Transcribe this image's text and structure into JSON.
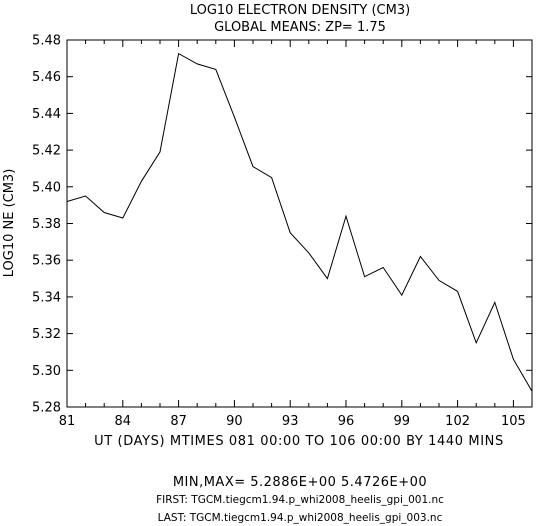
{
  "chart_data": {
    "type": "line",
    "title": "LOG10 ELECTRON DENSITY (CM3)",
    "subtitle": "GLOBAL MEANS: ZP=  1.75",
    "xlabel": "UT (DAYS) MTIMES 081 00:00 TO 106 00:00 BY 1440 MINS",
    "ylabel": "LOG10 NE (CM3)",
    "xlim": [
      81,
      106
    ],
    "ylim": [
      5.28,
      5.48
    ],
    "xticks": [
      81,
      84,
      87,
      90,
      93,
      96,
      99,
      102,
      105
    ],
    "xtick_labels": [
      "81",
      "84",
      "87",
      "90",
      "93",
      "96",
      "99",
      "102",
      "105"
    ],
    "yticks": [
      5.28,
      5.3,
      5.32,
      5.34,
      5.36,
      5.38,
      5.4,
      5.42,
      5.44,
      5.46,
      5.48
    ],
    "ytick_labels": [
      "5.28",
      "5.30",
      "5.32",
      "5.34",
      "5.36",
      "5.38",
      "5.40",
      "5.42",
      "5.44",
      "5.46",
      "5.48"
    ],
    "grid": false,
    "series": [
      {
        "x": [
          81,
          82,
          83,
          84,
          85,
          86,
          87,
          88,
          89,
          90,
          91,
          92,
          93,
          94,
          95,
          96,
          97,
          98,
          99,
          100,
          101,
          102,
          103,
          104,
          105,
          106
        ],
        "values": [
          5.392,
          5.395,
          5.386,
          5.383,
          5.403,
          5.419,
          5.4726,
          5.467,
          5.464,
          5.438,
          5.411,
          5.405,
          5.375,
          5.364,
          5.35,
          5.384,
          5.351,
          5.356,
          5.341,
          5.362,
          5.349,
          5.343,
          5.315,
          5.337,
          5.306,
          5.2886
        ]
      }
    ]
  },
  "footer": {
    "minmax": "MIN,MAX=  5.2886E+00  5.4726E+00",
    "first": "FIRST: TGCM.tiegcm1.94.p_whi2008_heelis_gpi_001.nc",
    "last": "LAST:  TGCM.tiegcm1.94.p_whi2008_heelis_gpi_003.nc"
  }
}
